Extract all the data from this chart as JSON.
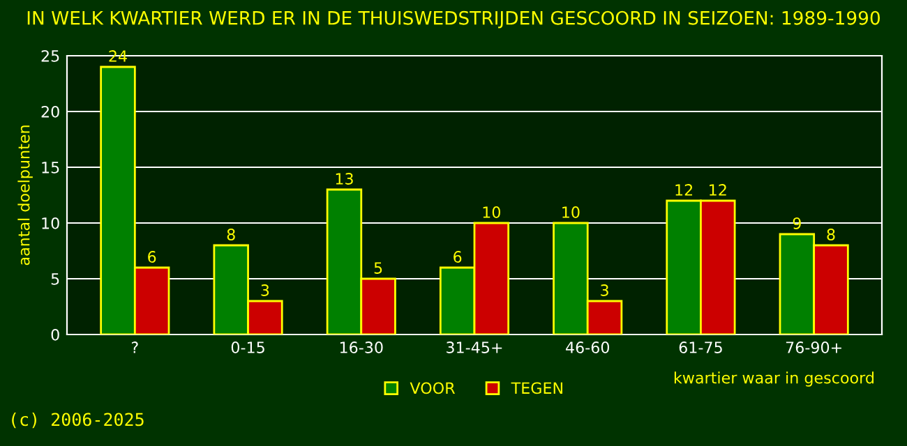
{
  "chart_data": {
    "type": "bar",
    "title": "IN WELK KWARTIER WERD ER IN DE THUISWEDSTRIJDEN GESCOORD IN SEIZOEN: 1989-1990",
    "xlabel": "kwartier waar in gescoord",
    "ylabel": "aantal doelpunten",
    "categories": [
      "?",
      "0-15",
      "16-30",
      "31-45+",
      "46-60",
      "61-75",
      "76-90+"
    ],
    "series": [
      {
        "name": "VOOR",
        "color": "#008000",
        "values": [
          24,
          8,
          13,
          6,
          10,
          12,
          9
        ]
      },
      {
        "name": "TEGEN",
        "color": "#cc0000",
        "values": [
          6,
          3,
          5,
          10,
          3,
          12,
          8
        ]
      }
    ],
    "ylim": [
      0,
      25
    ],
    "yticks": [
      0,
      5,
      10,
      15,
      20,
      25
    ],
    "grid": "y",
    "legend": "bottom",
    "data_labels": true,
    "annotations": [
      "(c) 2006-2025"
    ]
  }
}
